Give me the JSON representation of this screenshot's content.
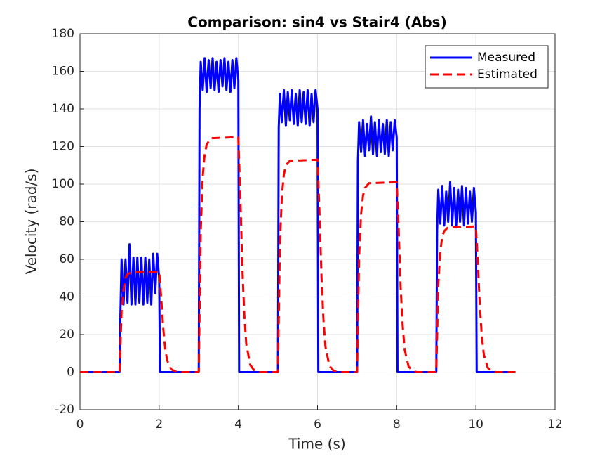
{
  "chart_data": {
    "type": "line",
    "title": "Comparison: sin4 vs Stair4 (Abs)",
    "x_label": "Time (s)",
    "y_label": "Velocity (rad/s)",
    "xlim": [
      0,
      12
    ],
    "ylim": [
      -20,
      180
    ],
    "xticks": [
      0,
      2,
      4,
      6,
      8,
      10,
      12
    ],
    "yticks": [
      -20,
      0,
      20,
      40,
      60,
      80,
      100,
      120,
      140,
      160,
      180
    ],
    "grid": true,
    "legend": "northeast",
    "series": [
      {
        "name": "Measured",
        "color": "#0000ff",
        "linestyle": "solid",
        "x": [
          0,
          1,
          1.02,
          1.05,
          1.1,
          1.15,
          1.2,
          1.25,
          1.3,
          1.35,
          1.4,
          1.45,
          1.5,
          1.55,
          1.6,
          1.65,
          1.7,
          1.75,
          1.8,
          1.85,
          1.9,
          1.95,
          2,
          2.02,
          3,
          3.02,
          3.05,
          3.1,
          3.15,
          3.2,
          3.25,
          3.3,
          3.35,
          3.4,
          3.45,
          3.5,
          3.55,
          3.6,
          3.65,
          3.7,
          3.75,
          3.8,
          3.85,
          3.9,
          3.95,
          4,
          4.02,
          5,
          5.02,
          5.05,
          5.1,
          5.15,
          5.2,
          5.25,
          5.3,
          5.35,
          5.4,
          5.45,
          5.5,
          5.55,
          5.6,
          5.65,
          5.7,
          5.75,
          5.8,
          5.85,
          5.9,
          5.95,
          6,
          6.02,
          7,
          7.02,
          7.05,
          7.1,
          7.15,
          7.2,
          7.25,
          7.3,
          7.35,
          7.4,
          7.45,
          7.5,
          7.55,
          7.6,
          7.65,
          7.7,
          7.75,
          7.8,
          7.85,
          7.9,
          7.95,
          8,
          8.02,
          9,
          9.02,
          9.05,
          9.1,
          9.15,
          9.2,
          9.25,
          9.3,
          9.35,
          9.4,
          9.45,
          9.5,
          9.55,
          9.6,
          9.65,
          9.7,
          9.75,
          9.8,
          9.85,
          9.9,
          9.95,
          10,
          10.02,
          11
        ],
        "values": [
          0,
          0,
          30,
          60,
          36,
          60,
          37,
          68,
          36,
          61,
          36,
          61,
          37,
          61,
          36,
          61,
          37,
          60,
          36,
          63,
          42,
          63,
          50,
          0,
          0,
          140,
          165,
          150,
          167,
          149,
          166,
          151,
          167,
          150,
          165,
          149,
          166,
          152,
          167,
          150,
          165,
          149,
          166,
          151,
          167,
          155,
          0,
          0,
          130,
          148,
          133,
          150,
          131,
          149,
          134,
          150,
          132,
          148,
          131,
          150,
          133,
          149,
          132,
          150,
          131,
          148,
          133,
          150,
          140,
          0,
          0,
          112,
          133,
          117,
          134,
          115,
          132,
          118,
          136,
          116,
          133,
          115,
          134,
          117,
          132,
          116,
          134,
          115,
          133,
          118,
          134,
          125,
          0,
          0,
          75,
          97,
          79,
          99,
          78,
          96,
          80,
          101,
          78,
          98,
          77,
          97,
          80,
          99,
          78,
          98,
          79,
          96,
          80,
          98,
          85,
          0,
          0
        ]
      },
      {
        "name": "Estimated",
        "color": "#ff0000",
        "linestyle": "dashed",
        "x": [
          0,
          1,
          1.05,
          1.1,
          1.15,
          1.2,
          1.3,
          2,
          2.05,
          2.1,
          2.15,
          2.2,
          2.3,
          2.4,
          2.5,
          3,
          3.05,
          3.1,
          3.15,
          3.2,
          3.3,
          4,
          4.05,
          4.1,
          4.15,
          4.2,
          4.3,
          4.4,
          4.5,
          5,
          5.05,
          5.1,
          5.15,
          5.2,
          5.3,
          6,
          6.05,
          6.1,
          6.15,
          6.2,
          6.3,
          6.4,
          6.5,
          7,
          7.05,
          7.1,
          7.15,
          7.2,
          7.3,
          8,
          8.05,
          8.1,
          8.15,
          8.2,
          8.3,
          8.4,
          8.5,
          9,
          9.05,
          9.1,
          9.15,
          9.2,
          9.3,
          10,
          10.05,
          10.1,
          10.15,
          10.2,
          10.3,
          10.4,
          10.5,
          11
        ],
        "values": [
          0,
          0,
          32,
          44,
          50,
          52,
          53.2,
          53.5,
          40,
          24,
          13,
          6.4,
          1.6,
          0.4,
          0,
          0,
          75,
          104,
          116,
          121,
          124.4,
          125,
          94,
          56,
          31,
          15,
          3.8,
          1,
          0,
          0,
          68,
          94,
          105,
          110,
          112.4,
          113,
          85,
          51,
          28,
          13.6,
          3.4,
          0.9,
          0,
          0,
          61,
          84,
          94,
          98,
          100.5,
          101,
          76,
          45,
          25,
          12,
          3,
          0.8,
          0,
          0,
          46,
          64,
          72,
          75,
          77.1,
          77.5,
          58,
          35,
          19,
          9.3,
          2.3,
          0.6,
          0,
          0
        ]
      }
    ]
  }
}
